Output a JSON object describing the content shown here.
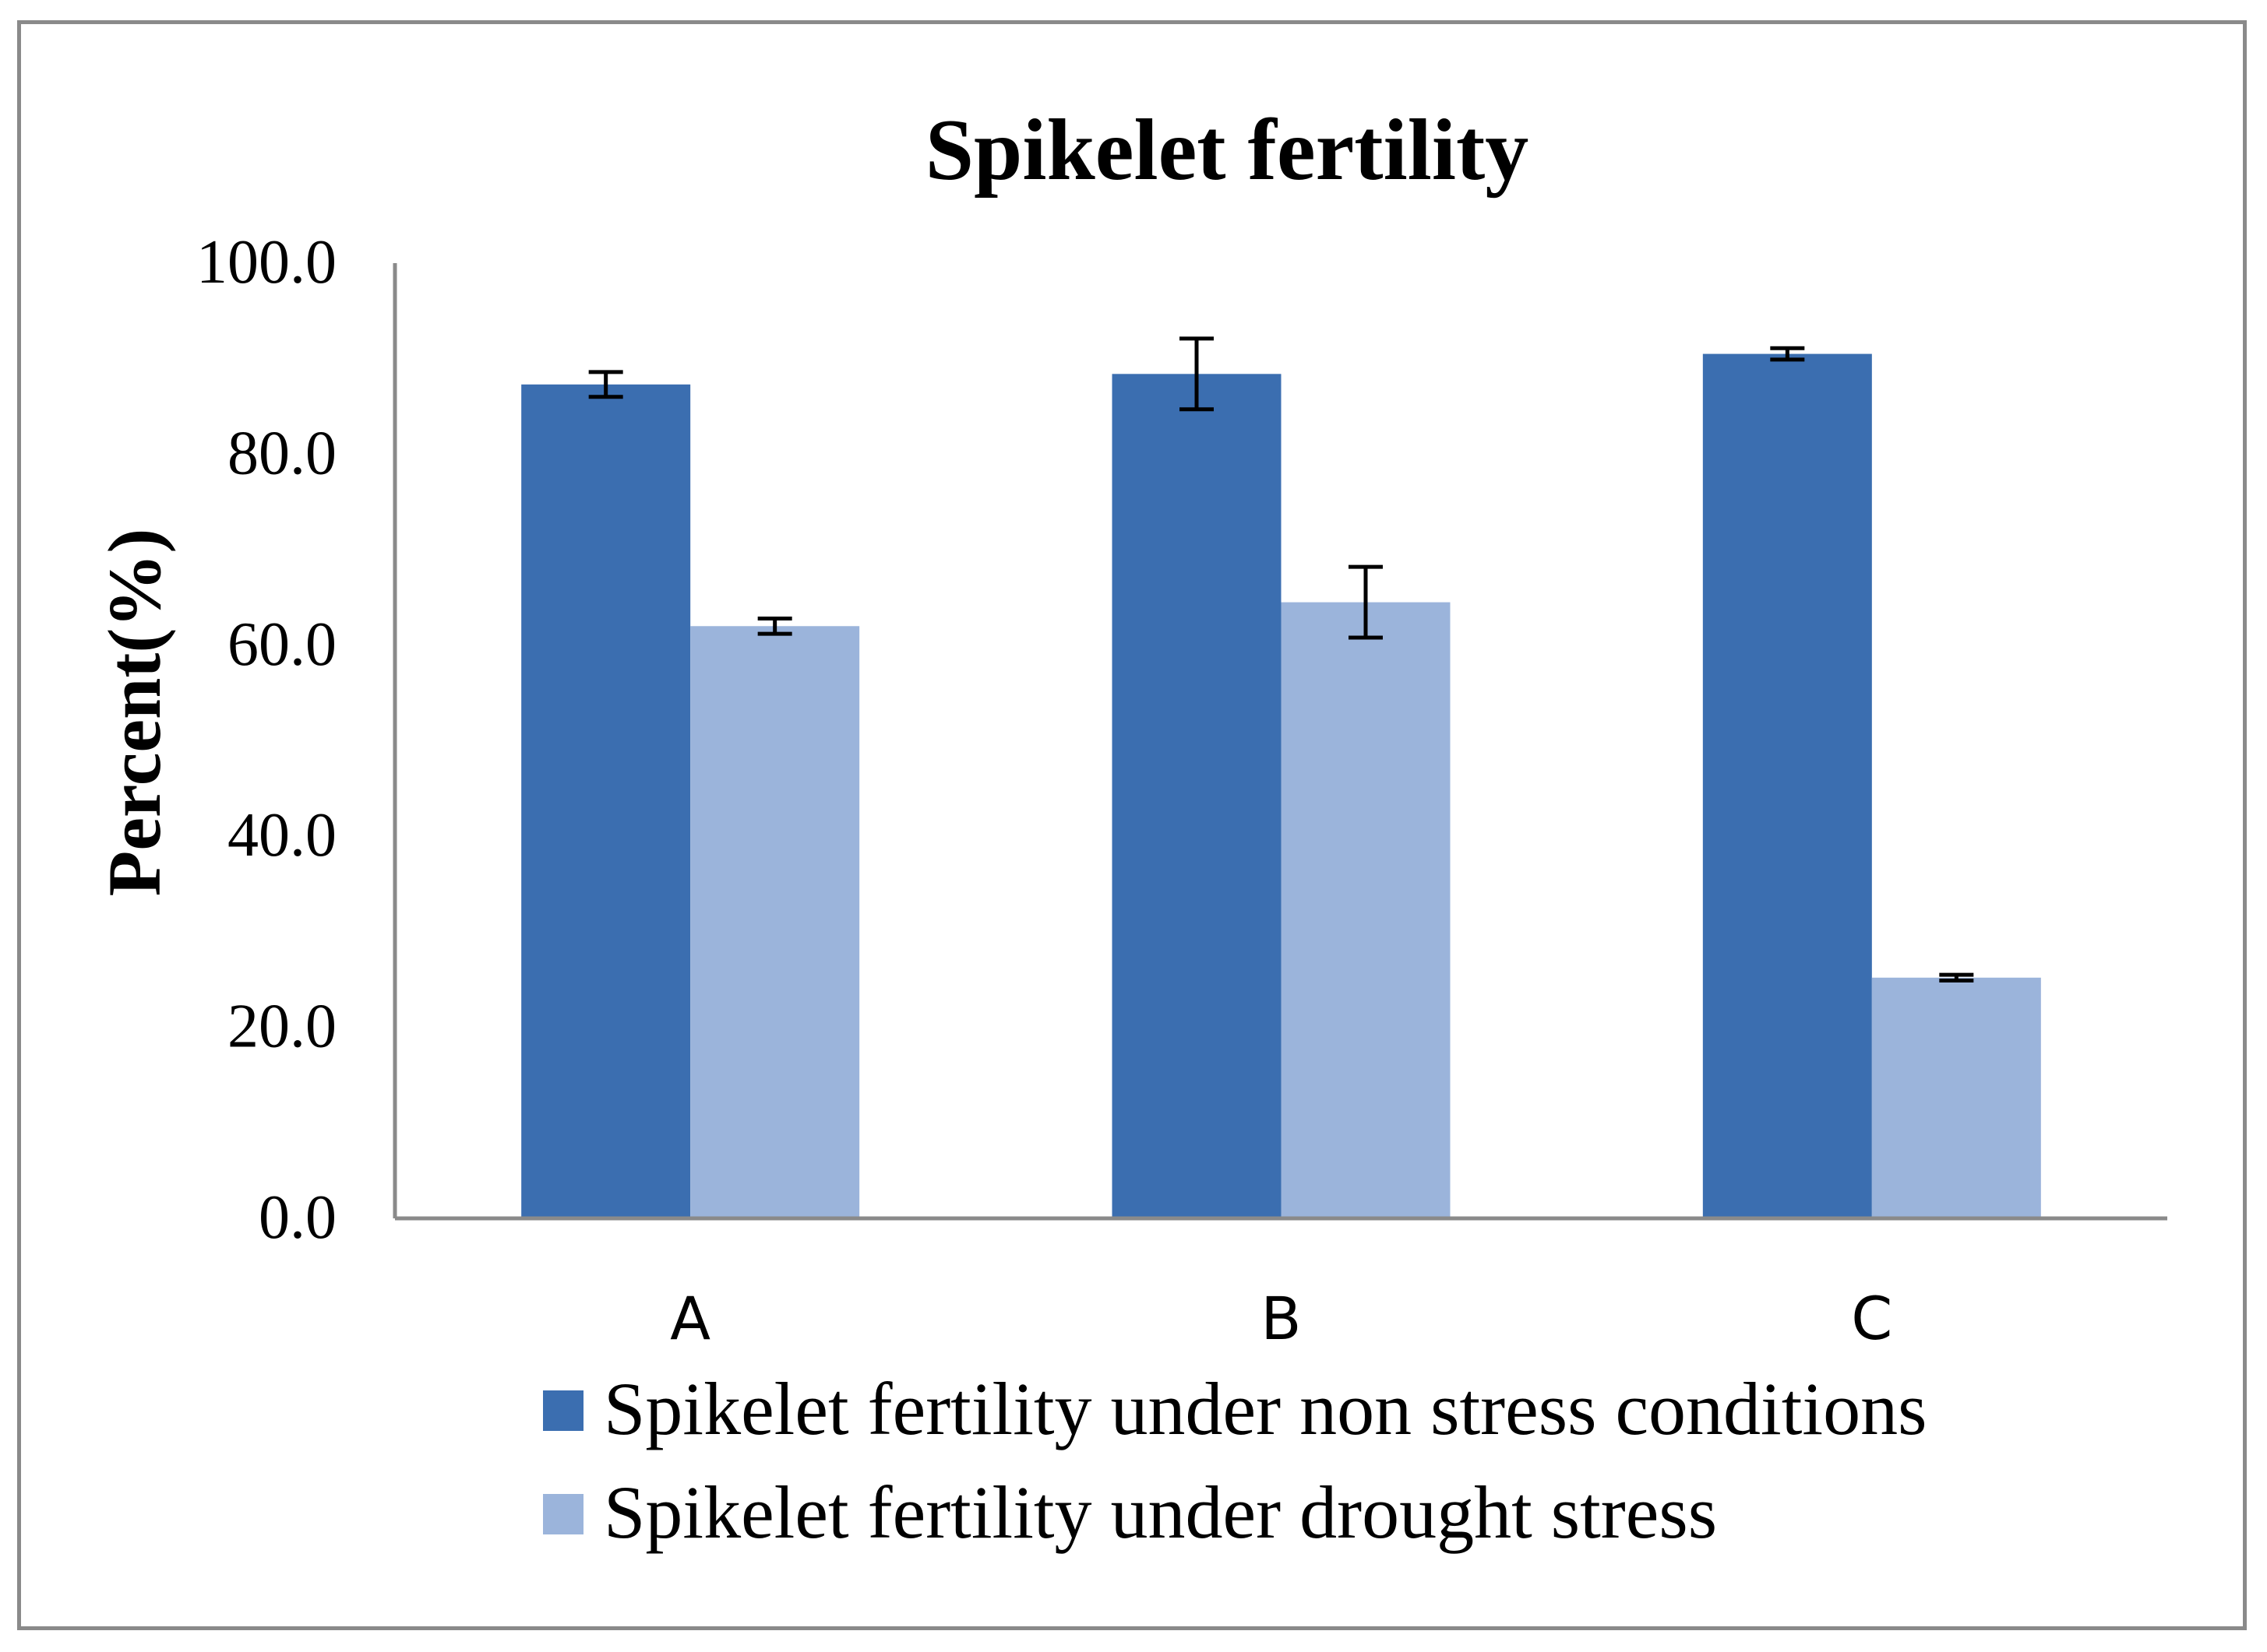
{
  "chart_data": {
    "type": "bar",
    "title": "Spikelet fertility",
    "xlabel": "",
    "ylabel": "Percent(%)",
    "ylim": [
      0,
      100
    ],
    "yticks": [
      "0.0",
      "20.0",
      "40.0",
      "60.0",
      "80.0",
      "100.0"
    ],
    "categories": [
      "A",
      "B",
      "C"
    ],
    "series": [
      {
        "name": "Spikelet fertility under non stress conditions",
        "color": "#3b6eb0",
        "values": [
          87.3,
          88.4,
          90.5
        ],
        "errors": [
          1.3,
          3.7,
          0.6
        ]
      },
      {
        "name": "Spikelet fertility under drought stress",
        "color": "#9bb4db",
        "values": [
          62.0,
          64.5,
          25.2
        ],
        "errors": [
          0.8,
          3.7,
          0.3
        ]
      }
    ],
    "grid": false,
    "legend_position": "bottom"
  }
}
